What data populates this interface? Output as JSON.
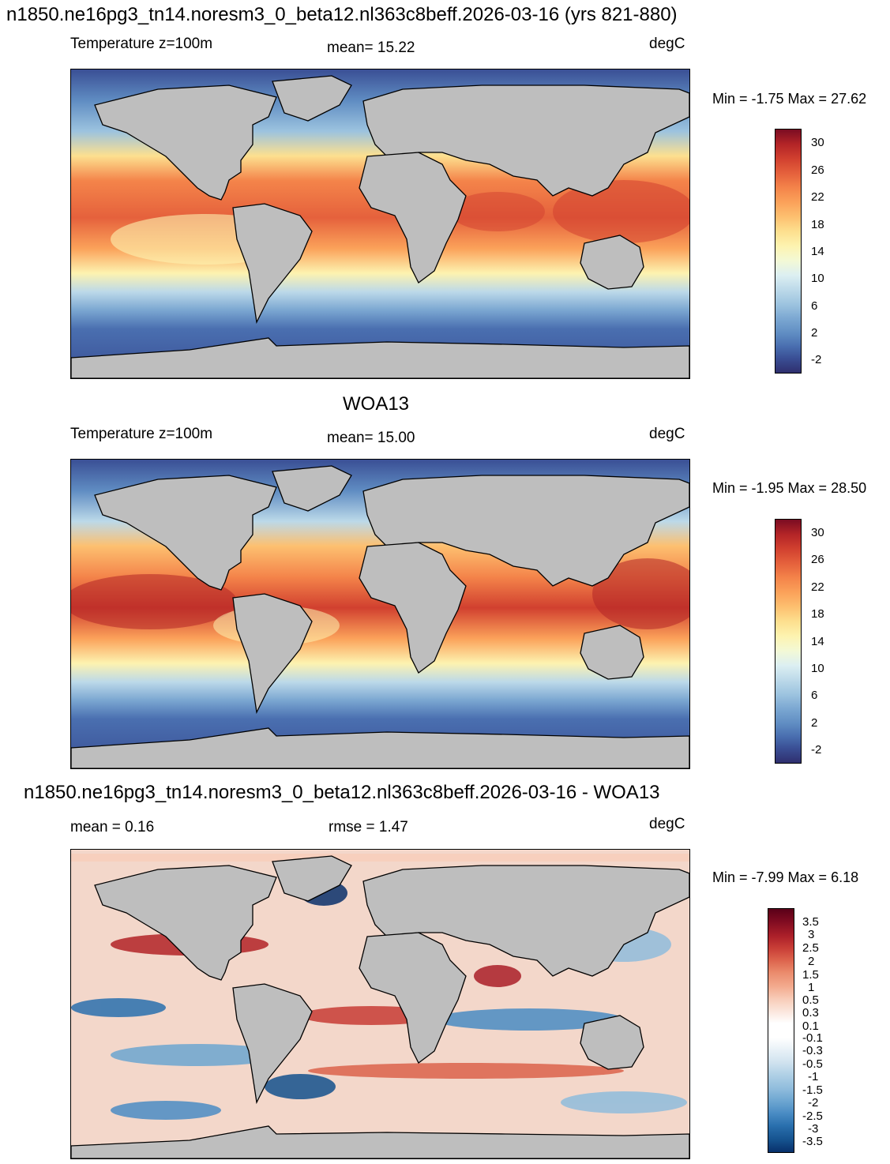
{
  "panels": [
    {
      "title": "n1850.ne16pg3_tn14.noresm3_0_beta12.nl363c8beff.2026-03-16 (yrs 821-880)",
      "left_label": "Temperature z=100m",
      "mean_text": "mean=  15.22",
      "units": "degC",
      "minmax_text": "Min =  -1.75 Max =  27.62",
      "colorbar_ticks": [
        "30",
        "26",
        "22",
        "18",
        "14",
        "10",
        "6",
        "2",
        "-2"
      ]
    },
    {
      "title": "WOA13",
      "left_label": "Temperature z=100m",
      "mean_text": "mean=  15.00",
      "units": "degC",
      "minmax_text": "Min =  -1.95 Max =  28.50",
      "colorbar_ticks": [
        "30",
        "26",
        "22",
        "18",
        "14",
        "10",
        "6",
        "2",
        "-2"
      ]
    },
    {
      "title": "n1850.ne16pg3_tn14.noresm3_0_beta12.nl363c8beff.2026-03-16 - WOA13",
      "left_label": "mean =   0.16",
      "mean_text": "rmse =   1.47",
      "units": "degC",
      "minmax_text": "Min =  -7.99 Max =   6.18",
      "colorbar_ticks": [
        "3.5",
        "3",
        "2.5",
        "2",
        "1.5",
        "1",
        "0.5",
        "0.3",
        "0.1",
        "-0.1",
        "-0.3",
        "-0.5",
        "-1",
        "-1.5",
        "-2",
        "-2.5",
        "-3",
        "-3.5"
      ]
    }
  ],
  "colors": {
    "land": "#bebebe",
    "temp_scale": [
      "#2f2f6e",
      "#3a4f95",
      "#4a6fb0",
      "#5f8cc2",
      "#7aa6d1",
      "#9cc3df",
      "#bcd9e9",
      "#dceff2",
      "#f3f9d6",
      "#fdf3b0",
      "#fde08f",
      "#fdc070",
      "#fba25a",
      "#f4844a",
      "#e5613c",
      "#d1402f",
      "#b32427",
      "#7a0c22"
    ],
    "diff_scale": [
      "#08306b",
      "#15528e",
      "#2a70ae",
      "#4a8cc4",
      "#6da6d1",
      "#8fbcdc",
      "#b1d1e6",
      "#d1e3ef",
      "#e8f1f7",
      "#ffffff",
      "#fbe5dc",
      "#f8ccb8",
      "#f3ab8f",
      "#ea8a6b",
      "#dc634c",
      "#c83d36",
      "#ab1f29",
      "#7f0b21",
      "#5a0018"
    ]
  }
}
